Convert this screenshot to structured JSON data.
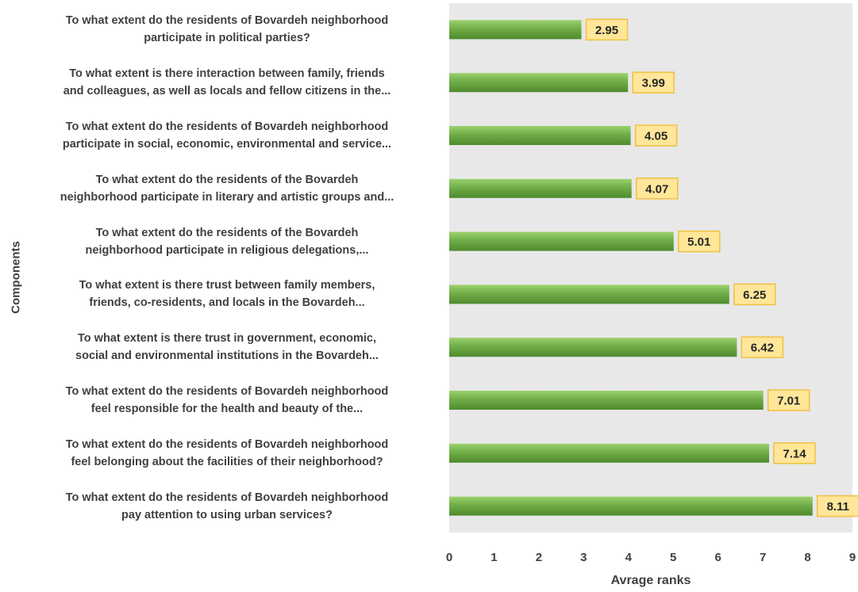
{
  "chart_data": {
    "type": "bar",
    "orientation": "horizontal",
    "categories": [
      "To what extent do the residents of Bovardeh neighborhood participate in political parties?",
      "To what extent is there interaction between family, friends and colleagues, as well as locals and fellow citizens in the...",
      "To what extent do the residents of Bovardeh neighborhood participate in social, economic, environmental and service...",
      "To what extent do the residents of the Bovardeh neighborhood participate in literary and artistic groups and...",
      "To what extent do the residents of the Bovardeh neighborhood participate in religious delegations,...",
      "To what extent is there trust between family members, friends, co-residents, and locals in the Bovardeh...",
      "To what extent is there trust in government, economic, social and environmental institutions in the Bovardeh...",
      "To what extent do the residents of Bovardeh neighborhood feel responsible for the health and beauty of the...",
      "To what extent do the residents of Bovardeh neighborhood feel belonging about the facilities of their neighborhood?",
      "To what extent do the residents of Bovardeh neighborhood pay attention to using urban services?"
    ],
    "category_lines": [
      [
        "To what extent do the residents of Bovardeh neighborhood",
        "participate in political parties?"
      ],
      [
        "To what extent is there interaction between family, friends",
        "and colleagues, as well as locals and fellow citizens in the..."
      ],
      [
        "To what extent do the residents of Bovardeh neighborhood",
        "participate in social, economic, environmental and service..."
      ],
      [
        "To what extent do the residents of the Bovardeh",
        "neighborhood participate in literary and artistic groups and..."
      ],
      [
        "To what extent do the residents of the Bovardeh",
        "neighborhood participate in religious delegations,..."
      ],
      [
        "To what extent is there trust between family members,",
        "friends, co-residents, and locals in the Bovardeh..."
      ],
      [
        "To what extent is there trust in government, economic,",
        "social and environmental institutions in the Bovardeh..."
      ],
      [
        "To what extent do the residents of Bovardeh neighborhood",
        "feel responsible for the health and beauty of the..."
      ],
      [
        "To what extent do the residents of Bovardeh neighborhood",
        "feel belonging about the facilities of their neighborhood?"
      ],
      [
        "To what extent do the residents of Bovardeh neighborhood",
        "pay attention to using urban services?"
      ]
    ],
    "values": [
      2.95,
      3.99,
      4.05,
      4.07,
      5.01,
      6.25,
      6.42,
      7.01,
      7.14,
      8.11
    ],
    "value_labels": [
      "2.95",
      "3.99",
      "4.05",
      "4.07",
      "5.01",
      "6.25",
      "6.42",
      "7.01",
      "7.14",
      "8.11"
    ],
    "xlabel": "Avrage ranks",
    "ylabel": "Components",
    "xlim": [
      0,
      9
    ],
    "x_ticks": [
      "0",
      "1",
      "2",
      "3",
      "4",
      "5",
      "6",
      "7",
      "8",
      "9"
    ],
    "grid": false,
    "legend": "none",
    "colors": {
      "plot_background": "#e8e8e8",
      "bar_fill": "#70ad47",
      "bar_highlight": "#9bd16e",
      "bar_shadow": "#4f8a2e",
      "label_fill": "#ffe699",
      "label_border": "#f0c040",
      "text": "#404040"
    }
  }
}
